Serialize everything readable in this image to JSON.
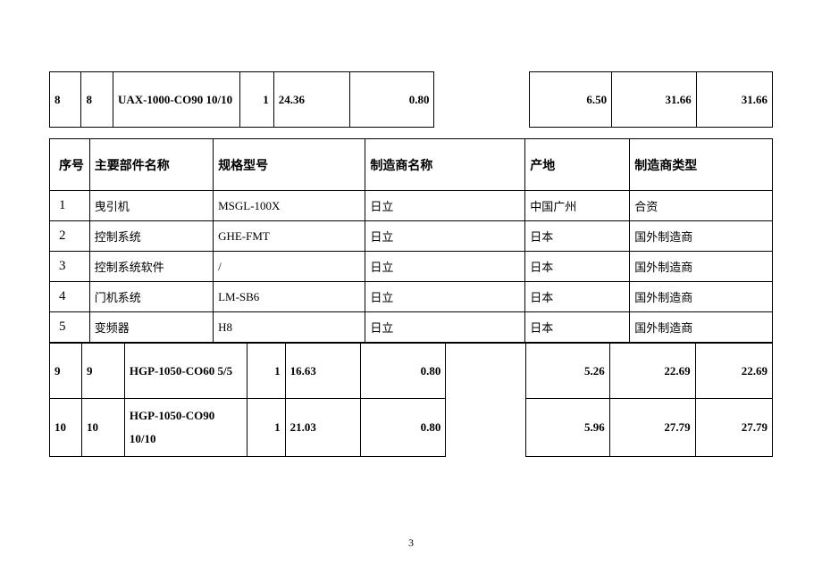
{
  "t1_row": {
    "c0": "8",
    "c1": "8",
    "c2": "UAX-1000-CO90 10/10",
    "c3": "1",
    "c4": "24.36",
    "c5": "0.80",
    "c7": "6.50",
    "c8": "31.66",
    "c9": "31.66"
  },
  "t2_head": {
    "c0": "序号",
    "c1": "主要部件名称",
    "c2": "规格型号",
    "c3": "制造商名称",
    "c4": "产地",
    "c5": "制造商类型"
  },
  "t2_rows": [
    {
      "c0": "1",
      "c1": "曳引机",
      "c2": "MSGL-100X",
      "c3": "日立",
      "c4": "中国广州",
      "c5": "合资"
    },
    {
      "c0": "2",
      "c1": "控制系统",
      "c2": "GHE-FMT",
      "c3": "日立",
      "c4": "日本",
      "c5": "国外制造商"
    },
    {
      "c0": "3",
      "c1": "控制系统软件",
      "c2": "/",
      "c3": "日立",
      "c4": "日本",
      "c5": "国外制造商"
    },
    {
      "c0": "4",
      "c1": "门机系统",
      "c2": "LM-SB6",
      "c3": "日立",
      "c4": "日本",
      "c5": "国外制造商"
    },
    {
      "c0": "5",
      "c1": "变频器",
      "c2": "H8",
      "c3": "日立",
      "c4": "日本",
      "c5": "国外制造商"
    }
  ],
  "t3_rows": [
    {
      "c0": "9",
      "c1": "9",
      "c2": "HGP-1050-CO60 5/5",
      "c3": "1",
      "c4": "16.63",
      "c5": "0.80",
      "c7": "5.26",
      "c8": "22.69",
      "c9": "22.69"
    },
    {
      "c0": "10",
      "c1": "10",
      "c2": "HGP-1050-CO90 10/10",
      "c3": "1",
      "c4": "21.03",
      "c5": "0.80",
      "c7": "5.96",
      "c8": "27.79",
      "c9": "27.79"
    }
  ],
  "page_number": "3"
}
